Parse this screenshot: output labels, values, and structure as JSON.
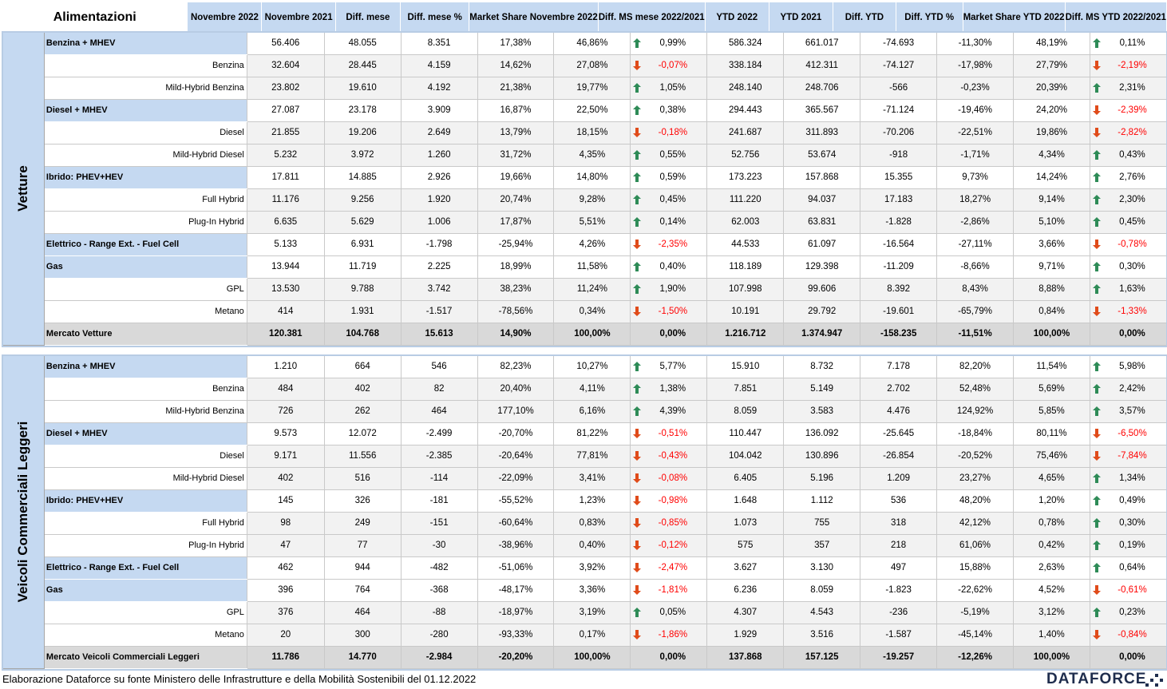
{
  "colors": {
    "header_bg": "#c5d9f1",
    "subrow_bg": "#f2f2f2",
    "total_bg": "#d9d9d9",
    "negative": "#ff0000",
    "arrow_up": "#2e8b57",
    "arrow_down": "#e04b1a"
  },
  "header": {
    "title": "Alimentazioni",
    "columns": [
      "Novembre 2022",
      "Novembre 2021",
      "Diff. mese",
      "Diff. mese %",
      "Market Share Novembre 2022",
      "Diff. MS mese 2022/2021",
      "YTD 2022",
      "YTD 2021",
      "Diff. YTD",
      "Diff. YTD %",
      "Market Share YTD 2022",
      "Diff. MS YTD 2022/2021"
    ]
  },
  "sections": [
    {
      "name": "Vetture",
      "rows": [
        {
          "type": "main",
          "label": "Benzina + MHEV",
          "v": [
            "56.406",
            "48.055",
            "8.351",
            "17,38%",
            "46,86%",
            "0,99%",
            "586.324",
            "661.017",
            "-74.693",
            "-11,30%",
            "48,19%",
            "0,11%"
          ],
          "a": [
            "up",
            "up"
          ]
        },
        {
          "type": "sub",
          "label": "Benzina",
          "v": [
            "32.604",
            "28.445",
            "4.159",
            "14,62%",
            "27,08%",
            "-0,07%",
            "338.184",
            "412.311",
            "-74.127",
            "-17,98%",
            "27,79%",
            "-2,19%"
          ],
          "a": [
            "down",
            "down"
          ]
        },
        {
          "type": "sub",
          "label": "Mild-Hybrid Benzina",
          "v": [
            "23.802",
            "19.610",
            "4.192",
            "21,38%",
            "19,77%",
            "1,05%",
            "248.140",
            "248.706",
            "-566",
            "-0,23%",
            "20,39%",
            "2,31%"
          ],
          "a": [
            "up",
            "up"
          ]
        },
        {
          "type": "main",
          "label": "Diesel + MHEV",
          "v": [
            "27.087",
            "23.178",
            "3.909",
            "16,87%",
            "22,50%",
            "0,38%",
            "294.443",
            "365.567",
            "-71.124",
            "-19,46%",
            "24,20%",
            "-2,39%"
          ],
          "a": [
            "up",
            "down"
          ]
        },
        {
          "type": "sub",
          "label": "Diesel",
          "v": [
            "21.855",
            "19.206",
            "2.649",
            "13,79%",
            "18,15%",
            "-0,18%",
            "241.687",
            "311.893",
            "-70.206",
            "-22,51%",
            "19,86%",
            "-2,82%"
          ],
          "a": [
            "down",
            "down"
          ]
        },
        {
          "type": "sub",
          "label": "Mild-Hybrid Diesel",
          "v": [
            "5.232",
            "3.972",
            "1.260",
            "31,72%",
            "4,35%",
            "0,55%",
            "52.756",
            "53.674",
            "-918",
            "-1,71%",
            "4,34%",
            "0,43%"
          ],
          "a": [
            "up",
            "up"
          ]
        },
        {
          "type": "main",
          "label": "Ibrido: PHEV+HEV",
          "v": [
            "17.811",
            "14.885",
            "2.926",
            "19,66%",
            "14,80%",
            "0,59%",
            "173.223",
            "157.868",
            "15.355",
            "9,73%",
            "14,24%",
            "2,76%"
          ],
          "a": [
            "up",
            "up"
          ]
        },
        {
          "type": "sub",
          "label": "Full Hybrid",
          "v": [
            "11.176",
            "9.256",
            "1.920",
            "20,74%",
            "9,28%",
            "0,45%",
            "111.220",
            "94.037",
            "17.183",
            "18,27%",
            "9,14%",
            "2,30%"
          ],
          "a": [
            "up",
            "up"
          ]
        },
        {
          "type": "sub",
          "label": "Plug-In Hybrid",
          "v": [
            "6.635",
            "5.629",
            "1.006",
            "17,87%",
            "5,51%",
            "0,14%",
            "62.003",
            "63.831",
            "-1.828",
            "-2,86%",
            "5,10%",
            "0,45%"
          ],
          "a": [
            "up",
            "up"
          ]
        },
        {
          "type": "main",
          "label": "Elettrico - Range Ext. - Fuel Cell",
          "v": [
            "5.133",
            "6.931",
            "-1.798",
            "-25,94%",
            "4,26%",
            "-2,35%",
            "44.533",
            "61.097",
            "-16.564",
            "-27,11%",
            "3,66%",
            "-0,78%"
          ],
          "a": [
            "down",
            "down"
          ]
        },
        {
          "type": "main",
          "label": "Gas",
          "v": [
            "13.944",
            "11.719",
            "2.225",
            "18,99%",
            "11,58%",
            "0,40%",
            "118.189",
            "129.398",
            "-11.209",
            "-8,66%",
            "9,71%",
            "0,30%"
          ],
          "a": [
            "up",
            "up"
          ]
        },
        {
          "type": "sub",
          "label": "GPL",
          "v": [
            "13.530",
            "9.788",
            "3.742",
            "38,23%",
            "11,24%",
            "1,90%",
            "107.998",
            "99.606",
            "8.392",
            "8,43%",
            "8,88%",
            "1,63%"
          ],
          "a": [
            "up",
            "up"
          ]
        },
        {
          "type": "sub",
          "label": "Metano",
          "v": [
            "414",
            "1.931",
            "-1.517",
            "-78,56%",
            "0,34%",
            "-1,50%",
            "10.191",
            "29.792",
            "-19.601",
            "-65,79%",
            "0,84%",
            "-1,33%"
          ],
          "a": [
            "down",
            "down"
          ]
        },
        {
          "type": "total",
          "label": "Mercato Vetture",
          "v": [
            "120.381",
            "104.768",
            "15.613",
            "14,90%",
            "100,00%",
            "0,00%",
            "1.216.712",
            "1.374.947",
            "-158.235",
            "-11,51%",
            "100,00%",
            "0,00%"
          ],
          "a": [
            "none",
            "none"
          ]
        }
      ]
    },
    {
      "name": "Veicoli Commerciali Leggeri",
      "rows": [
        {
          "type": "main",
          "label": "Benzina + MHEV",
          "v": [
            "1.210",
            "664",
            "546",
            "82,23%",
            "10,27%",
            "5,77%",
            "15.910",
            "8.732",
            "7.178",
            "82,20%",
            "11,54%",
            "5,98%"
          ],
          "a": [
            "up",
            "up"
          ]
        },
        {
          "type": "sub",
          "label": "Benzina",
          "v": [
            "484",
            "402",
            "82",
            "20,40%",
            "4,11%",
            "1,38%",
            "7.851",
            "5.149",
            "2.702",
            "52,48%",
            "5,69%",
            "2,42%"
          ],
          "a": [
            "up",
            "up"
          ]
        },
        {
          "type": "sub",
          "label": "Mild-Hybrid Benzina",
          "v": [
            "726",
            "262",
            "464",
            "177,10%",
            "6,16%",
            "4,39%",
            "8.059",
            "3.583",
            "4.476",
            "124,92%",
            "5,85%",
            "3,57%"
          ],
          "a": [
            "up",
            "up"
          ]
        },
        {
          "type": "main",
          "label": "Diesel + MHEV",
          "v": [
            "9.573",
            "12.072",
            "-2.499",
            "-20,70%",
            "81,22%",
            "-0,51%",
            "110.447",
            "136.092",
            "-25.645",
            "-18,84%",
            "80,11%",
            "-6,50%"
          ],
          "a": [
            "down",
            "down"
          ]
        },
        {
          "type": "sub",
          "label": "Diesel",
          "v": [
            "9.171",
            "11.556",
            "-2.385",
            "-20,64%",
            "77,81%",
            "-0,43%",
            "104.042",
            "130.896",
            "-26.854",
            "-20,52%",
            "75,46%",
            "-7,84%"
          ],
          "a": [
            "down",
            "down"
          ]
        },
        {
          "type": "sub",
          "label": "Mild-Hybrid Diesel",
          "v": [
            "402",
            "516",
            "-114",
            "-22,09%",
            "3,41%",
            "-0,08%",
            "6.405",
            "5.196",
            "1.209",
            "23,27%",
            "4,65%",
            "1,34%"
          ],
          "a": [
            "down",
            "up"
          ]
        },
        {
          "type": "main",
          "label": "Ibrido: PHEV+HEV",
          "v": [
            "145",
            "326",
            "-181",
            "-55,52%",
            "1,23%",
            "-0,98%",
            "1.648",
            "1.112",
            "536",
            "48,20%",
            "1,20%",
            "0,49%"
          ],
          "a": [
            "down",
            "up"
          ]
        },
        {
          "type": "sub",
          "label": "Full Hybrid",
          "v": [
            "98",
            "249",
            "-151",
            "-60,64%",
            "0,83%",
            "-0,85%",
            "1.073",
            "755",
            "318",
            "42,12%",
            "0,78%",
            "0,30%"
          ],
          "a": [
            "down",
            "up"
          ]
        },
        {
          "type": "sub",
          "label": "Plug-In Hybrid",
          "v": [
            "47",
            "77",
            "-30",
            "-38,96%",
            "0,40%",
            "-0,12%",
            "575",
            "357",
            "218",
            "61,06%",
            "0,42%",
            "0,19%"
          ],
          "a": [
            "down",
            "up"
          ]
        },
        {
          "type": "main",
          "label": "Elettrico - Range Ext. - Fuel Cell",
          "v": [
            "462",
            "944",
            "-482",
            "-51,06%",
            "3,92%",
            "-2,47%",
            "3.627",
            "3.130",
            "497",
            "15,88%",
            "2,63%",
            "0,64%"
          ],
          "a": [
            "down",
            "up"
          ]
        },
        {
          "type": "main",
          "label": "Gas",
          "v": [
            "396",
            "764",
            "-368",
            "-48,17%",
            "3,36%",
            "-1,81%",
            "6.236",
            "8.059",
            "-1.823",
            "-22,62%",
            "4,52%",
            "-0,61%"
          ],
          "a": [
            "down",
            "down"
          ]
        },
        {
          "type": "sub",
          "label": "GPL",
          "v": [
            "376",
            "464",
            "-88",
            "-18,97%",
            "3,19%",
            "0,05%",
            "4.307",
            "4.543",
            "-236",
            "-5,19%",
            "3,12%",
            "0,23%"
          ],
          "a": [
            "up",
            "up"
          ]
        },
        {
          "type": "sub",
          "label": "Metano",
          "v": [
            "20",
            "300",
            "-280",
            "-93,33%",
            "0,17%",
            "-1,86%",
            "1.929",
            "3.516",
            "-1.587",
            "-45,14%",
            "1,40%",
            "-0,84%"
          ],
          "a": [
            "down",
            "down"
          ]
        },
        {
          "type": "total",
          "label": "Mercato Veicoli Commerciali Leggeri",
          "v": [
            "11.786",
            "14.770",
            "-2.984",
            "-20,20%",
            "100,00%",
            "0,00%",
            "137.868",
            "157.125",
            "-19.257",
            "-12,26%",
            "100,00%",
            "0,00%"
          ],
          "a": [
            "none",
            "none"
          ]
        }
      ]
    }
  ],
  "footer": {
    "note": "Elaborazione Dataforce su fonte Ministero delle Infrastrutture e della Mobilità Sostenibili del 01.12.2022",
    "logo": "DATAFORCE"
  }
}
